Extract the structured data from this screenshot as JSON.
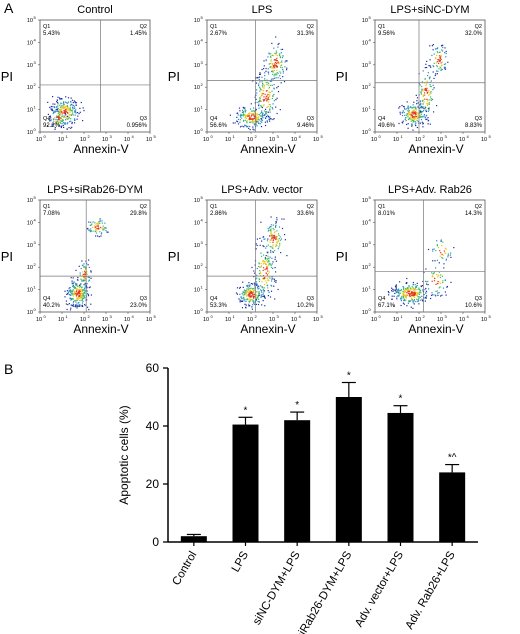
{
  "panel_labels": {
    "a": "A",
    "b": "B"
  },
  "flow_common": {
    "xlabel": "Annexin-V",
    "ylabel": "PI",
    "tick_exponents": [
      "0",
      "1",
      "2",
      "3",
      "4",
      "5"
    ],
    "tick_base": "10",
    "quadrant_names": [
      "Q1",
      "Q2",
      "Q3",
      "Q4"
    ]
  },
  "chart_data": [
    {
      "type": "scatter",
      "title": "Control",
      "quadrants": {
        "Q1": "5.43%",
        "Q2": "1.45%",
        "Q3": "0.956%",
        "Q4": "92.2%"
      }
    },
    {
      "type": "scatter",
      "title": "LPS",
      "quadrants": {
        "Q1": "2.67%",
        "Q2": "31.3%",
        "Q3": "9.46%",
        "Q4": "56.6%"
      }
    },
    {
      "type": "scatter",
      "title": "LPS+siNC-DYM",
      "quadrants": {
        "Q1": "9.56%",
        "Q2": "32.0%",
        "Q3": "8.83%",
        "Q4": "49.6%"
      }
    },
    {
      "type": "scatter",
      "title": "LPS+siRab26-DYM",
      "quadrants": {
        "Q1": "7.08%",
        "Q2": "29.8%",
        "Q3": "23.0%",
        "Q4": "40.2%"
      }
    },
    {
      "type": "scatter",
      "title": "LPS+Adv. vector",
      "quadrants": {
        "Q1": "2.86%",
        "Q2": "33.6%",
        "Q3": "10.2%",
        "Q4": "53.3%"
      }
    },
    {
      "type": "scatter",
      "title": "LPS+Adv. Rab26",
      "quadrants": {
        "Q1": "8.01%",
        "Q2": "14.3%",
        "Q3": "10.6%",
        "Q4": "67.1%"
      }
    },
    {
      "type": "bar",
      "categories": [
        "Control",
        "LPS",
        "siNC-DYM+LPS",
        "siRab26-DYM+LPS",
        "Adv. vector+LPS",
        "Adv. Rab26+LPS"
      ],
      "values": [
        2,
        40.5,
        42,
        50,
        44.5,
        24
      ],
      "errors": [
        0.6,
        2.5,
        2.8,
        5,
        2.5,
        2.7
      ],
      "annotations": [
        "",
        "*",
        "*",
        "*",
        "*",
        "*^"
      ],
      "ylabel": "Apoptotic cells (%)",
      "yticks": [
        0,
        20,
        40,
        60
      ],
      "ylim": [
        0,
        60
      ],
      "bar_color": "#000000"
    }
  ]
}
